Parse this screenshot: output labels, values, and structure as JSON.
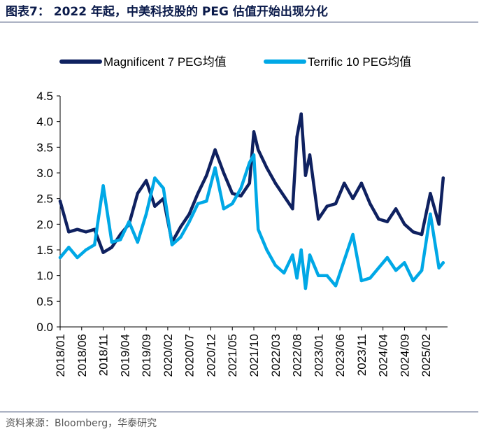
{
  "title": "图表7： 2022 年起，中美科技股的 PEG 估值开始出现分化",
  "source": "资料来源：Bloomberg，华泰研究",
  "colors": {
    "series1": "#0f2160",
    "series2": "#00a8e6"
  },
  "chart_data": {
    "type": "line",
    "title": "",
    "xlabel": "",
    "ylabel": "",
    "ylim": [
      0,
      4.5
    ],
    "yticks": [
      "0.0",
      "0.5",
      "1.0",
      "1.5",
      "2.0",
      "2.5",
      "3.0",
      "3.5",
      "4.0",
      "4.5"
    ],
    "xticks": [
      "2018/01",
      "2018/06",
      "2018/11",
      "2019/04",
      "2019/09",
      "2020/02",
      "2020/07",
      "2020/12",
      "2021/05",
      "2021/10",
      "2022/03",
      "2022/08",
      "2023/01",
      "2023/06",
      "2023/11",
      "2024/04",
      "2024/09",
      "2025/02"
    ],
    "grid": false,
    "legend": "top",
    "x": [
      "2018/01",
      "2018/03",
      "2018/05",
      "2018/07",
      "2018/09",
      "2018/11",
      "2019/01",
      "2019/03",
      "2019/05",
      "2019/07",
      "2019/09",
      "2019/11",
      "2020/01",
      "2020/03",
      "2020/05",
      "2020/07",
      "2020/09",
      "2020/11",
      "2021/01",
      "2021/03",
      "2021/05",
      "2021/07",
      "2021/09",
      "2021/10",
      "2021/11",
      "2022/01",
      "2022/03",
      "2022/05",
      "2022/07",
      "2022/08",
      "2022/09",
      "2022/10",
      "2022/11",
      "2023/01",
      "2023/03",
      "2023/05",
      "2023/07",
      "2023/09",
      "2023/11",
      "2024/01",
      "2024/03",
      "2024/05",
      "2024/07",
      "2024/09",
      "2024/11",
      "2025/01",
      "2025/03",
      "2025/05",
      "2025/06"
    ],
    "series": [
      {
        "name": "Magnificent 7 PEG均值",
        "values": [
          2.45,
          1.85,
          1.9,
          1.85,
          1.9,
          1.45,
          1.55,
          1.8,
          2.0,
          2.6,
          2.85,
          2.35,
          2.5,
          1.65,
          1.95,
          2.2,
          2.6,
          2.95,
          3.45,
          3.0,
          2.6,
          2.55,
          2.8,
          3.8,
          3.45,
          3.1,
          2.8,
          2.55,
          2.3,
          3.7,
          4.15,
          2.95,
          3.35,
          2.1,
          2.35,
          2.4,
          2.8,
          2.5,
          2.8,
          2.4,
          2.1,
          2.05,
          2.3,
          2.0,
          1.85,
          1.8,
          2.6,
          2.0,
          2.9
        ]
      },
      {
        "name": "Terrific 10 PEG均值",
        "values": [
          1.35,
          1.55,
          1.35,
          1.5,
          1.6,
          2.75,
          1.65,
          1.7,
          2.05,
          1.65,
          2.2,
          2.9,
          2.7,
          1.6,
          1.75,
          2.05,
          2.4,
          2.45,
          3.1,
          2.3,
          2.4,
          2.7,
          3.2,
          3.35,
          1.9,
          1.5,
          1.2,
          1.05,
          1.4,
          0.95,
          1.5,
          0.75,
          1.4,
          1.0,
          1.0,
          0.8,
          1.3,
          1.8,
          0.9,
          0.95,
          1.15,
          1.35,
          1.1,
          1.25,
          0.9,
          1.1,
          2.2,
          1.15,
          1.25
        ]
      }
    ]
  }
}
